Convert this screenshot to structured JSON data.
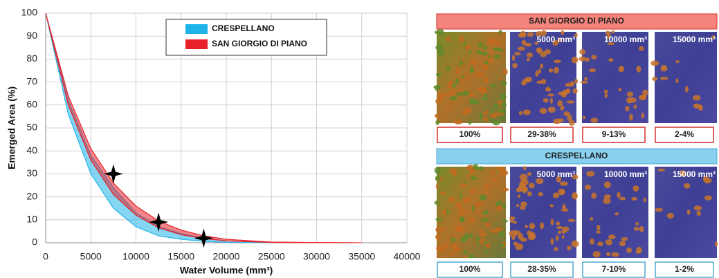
{
  "chart_data": {
    "type": "band",
    "xlabel": "Water Volume (mm³)",
    "ylabel": "Emerged Area (%)",
    "x": [
      0,
      2500,
      5000,
      7500,
      10000,
      12500,
      15000,
      17500,
      20000,
      25000,
      30000,
      35000
    ],
    "series": [
      {
        "name": "CRESPELLANO",
        "color": "#1fb4e8",
        "high": [
          100,
          62,
          38,
          24,
          13,
          7,
          4,
          2,
          0.8,
          0.2,
          0.05,
          0
        ],
        "low": [
          100,
          56,
          30,
          15,
          7,
          3,
          1.5,
          0.6,
          0.2,
          0,
          0,
          0
        ]
      },
      {
        "name": "SAN GIORGIO DI PIANO",
        "color": "#e8202a",
        "high": [
          100,
          64,
          41,
          26,
          16,
          9.5,
          5.5,
          3,
          1.5,
          0.3,
          0.1,
          0
        ],
        "low": [
          100,
          60,
          36,
          21,
          12,
          6.5,
          3.5,
          1.8,
          0.8,
          0.1,
          0,
          0
        ]
      }
    ],
    "markers": {
      "x": [
        7500,
        12500,
        17500
      ],
      "y": [
        30,
        9,
        2
      ]
    },
    "xlim": [
      0,
      40000
    ],
    "xticks": [
      0,
      5000,
      10000,
      15000,
      20000,
      25000,
      30000,
      35000,
      40000
    ],
    "ylim": [
      0,
      100
    ],
    "yticks": [
      0,
      10,
      20,
      30,
      40,
      50,
      60,
      70,
      80,
      90,
      100
    ],
    "grid": true,
    "legend": "upper center"
  },
  "panels": [
    {
      "title": "SAN GIORGIO DI PIANO",
      "image_labels": [
        "5000 mm³",
        "10000 mm³",
        "15000 mm³"
      ],
      "percentages": [
        "100%",
        "29-38%",
        "9-13%",
        "2-4%"
      ]
    },
    {
      "title": "CRESPELLANO",
      "image_labels": [
        "5000 mm³",
        "10000 mm³",
        "15000 mm³"
      ],
      "percentages": [
        "100%",
        "28-35%",
        "7-10%",
        "1-2%"
      ]
    }
  ]
}
